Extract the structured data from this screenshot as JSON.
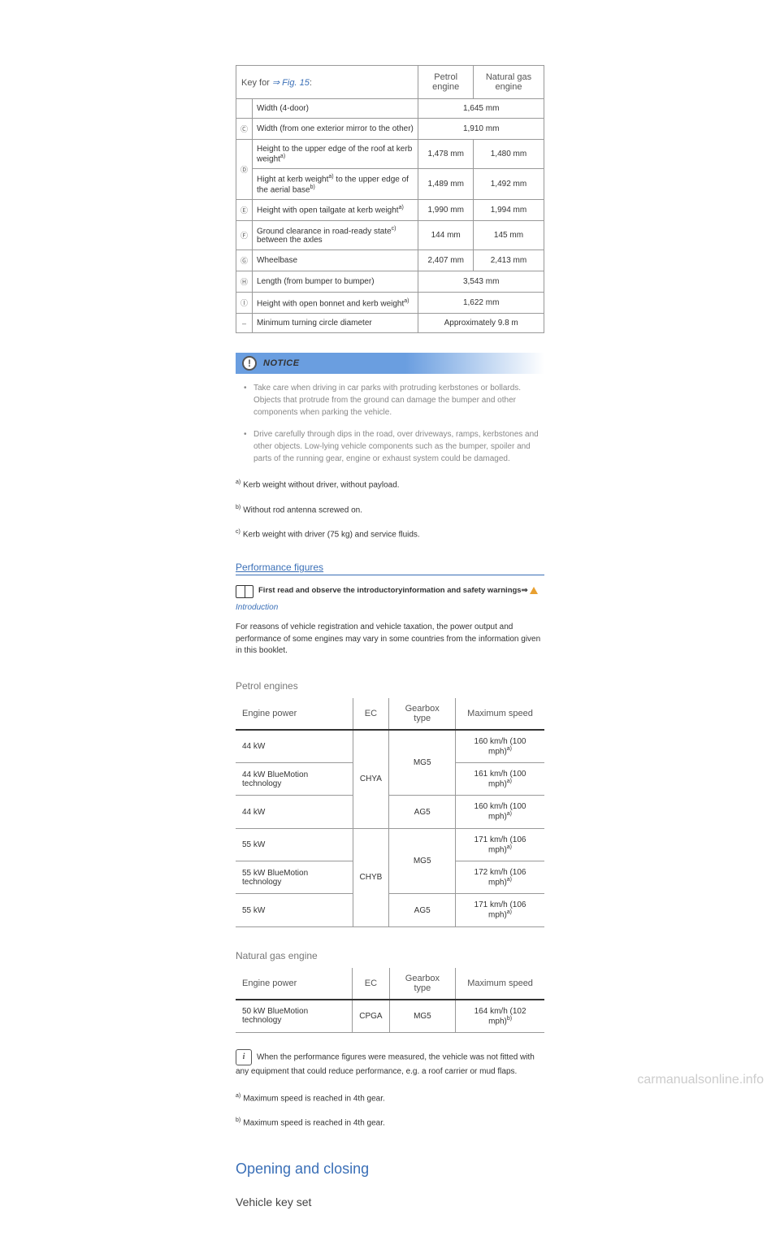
{
  "dimensions_table": {
    "header_key": "Key for ",
    "header_fig": "⇒ Fig. 15",
    "header_colon": ":",
    "col_petrol": "Petrol engine",
    "col_gas": "Natural gas engine",
    "rows": [
      {
        "ic": "",
        "label": "Width (4-door)",
        "span": "1,645 mm"
      },
      {
        "ic": "Ⓒ",
        "label": "Width (from one exterior mirror to the other)",
        "span": "1,910 mm"
      },
      {
        "ic": "Ⓓ",
        "label": "Height to the upper edge of the roof at kerb weight",
        "sup": "a)",
        "v1": "1,478 mm",
        "v2": "1,480 mm",
        "label2": "Hight at kerb weight",
        "label2_sup": "a)",
        "label2_tail": " to the upper edge of the aerial base",
        "label2_sup2": "b)",
        "v1b": "1,489 mm",
        "v2b": "1,492 mm"
      },
      {
        "ic": "Ⓔ",
        "label": "Height with open tailgate at kerb weight",
        "sup": "a)",
        "v1": "1,990 mm",
        "v2": "1,994 mm"
      },
      {
        "ic": "Ⓕ",
        "label": "Ground clearance in road-ready state",
        "sup": "c)",
        "tail": " between the axles",
        "v1": "144 mm",
        "v2": "145 mm"
      },
      {
        "ic": "Ⓖ",
        "label": "Wheelbase",
        "v1": "2,407 mm",
        "v2": "2,413 mm"
      },
      {
        "ic": "Ⓗ",
        "label": "Length (from bumper to bumper)",
        "span": "3,543 mm"
      },
      {
        "ic": "Ⓘ",
        "label": "Height with open bonnet and kerb weight",
        "sup": "a)",
        "span": "1,622 mm"
      },
      {
        "ic": "–",
        "label": "Minimum turning circle diameter",
        "span": "Approximately 9.8 m"
      }
    ]
  },
  "notice": {
    "title": "NOTICE",
    "items": [
      "Take care when driving in car parks with protruding kerbstones or bollards. Objects that protrude from the ground can damage the bumper and other components when parking the vehicle.",
      "Drive carefully through dips in the road, over driveways, ramps, kerbstones and other objects. Low-lying vehicle components such as the bumper, spoiler and parts of the running gear, engine or exhaust system could be damaged."
    ]
  },
  "dim_footnotes": {
    "a": "Kerb weight without driver, without payload.",
    "b": "Without rod antenna screwed on.",
    "c": "Kerb weight with driver (75 kg) and service fluids."
  },
  "perf_heading": "Performance figures",
  "intro": {
    "text": "First read and observe the introductoryinformation and safety warnings⇒",
    "link": "Introduction"
  },
  "perf_body": "For reasons of vehicle registration and vehicle taxation, the power output and performance of some engines may vary in some countries from the information given in this booklet.",
  "petrol_heading": "Petrol engines",
  "engine_headers": {
    "power": "Engine power",
    "ec": "EC",
    "gearbox": "Gearbox type",
    "speed": "Maximum speed"
  },
  "petrol_rows": [
    {
      "power": "44 kW",
      "ec": "CHYA",
      "gear": "MG5",
      "speed": "160 km/h (100 mph)",
      "sup": "a)"
    },
    {
      "power": "44 kW BlueMotion technology",
      "speed": "161 km/h (100 mph)",
      "sup": "a)"
    },
    {
      "power": "44 kW",
      "gear": "AG5",
      "speed": "160 km/h (100 mph)",
      "sup": "a)"
    },
    {
      "power": "55 kW",
      "ec": "CHYB",
      "gear": "MG5",
      "speed": "171 km/h (106 mph)",
      "sup": "a)"
    },
    {
      "power": "55 kW BlueMotion technology",
      "speed": "172 km/h (106 mph)",
      "sup": "a)"
    },
    {
      "power": "55 kW",
      "gear": "AG5",
      "speed": "171 km/h (106 mph)",
      "sup": "a)"
    }
  ],
  "gas_heading": "Natural gas engine",
  "gas_row": {
    "power": "50 kW BlueMotion technology",
    "ec": "CPGA",
    "gear": "MG5",
    "speed": "164 km/h (102 mph)",
    "sup": "b)"
  },
  "info_text": "When the performance figures were measured, the vehicle was not fitted with any equipment that could reduce performance, e.g. a roof carrier or mud flaps.",
  "perf_footnotes": {
    "a": "Maximum speed is reached in 4th gear.",
    "b": "Maximum speed is reached in 4th gear."
  },
  "chapter": "Opening and closing",
  "subchapter": "Vehicle key set",
  "watermark": "carmanualsonline.info"
}
